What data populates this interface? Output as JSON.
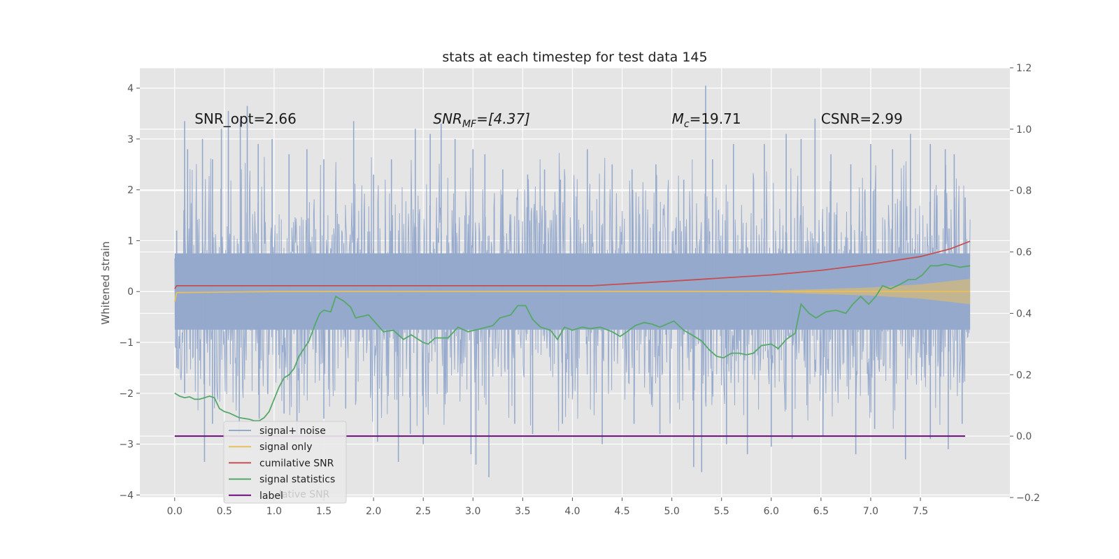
{
  "chart_data": {
    "type": "line",
    "title": "stats at each timestep for test data 145",
    "ylabel": "Whitened strain",
    "xlabel": "",
    "xlim": [
      -0.35,
      8.4
    ],
    "ylim": [
      -4.05,
      4.4
    ],
    "y2lim": [
      -0.2,
      1.2
    ],
    "xticks": [
      0.0,
      0.5,
      1.0,
      1.5,
      2.0,
      2.5,
      3.0,
      3.5,
      4.0,
      4.5,
      5.0,
      5.5,
      6.0,
      6.5,
      7.0,
      7.5
    ],
    "xtick_labels": [
      "0.0",
      "0.5",
      "1.0",
      "1.5",
      "2.0",
      "2.5",
      "3.0",
      "3.5",
      "4.0",
      "4.5",
      "5.0",
      "5.5",
      "6.0",
      "6.5",
      "7.0",
      "7.5"
    ],
    "yticks": [
      4,
      3,
      2,
      1,
      0,
      -1,
      -2,
      -3,
      -4
    ],
    "ytick_labels": [
      "4",
      "3",
      "2",
      "1",
      "0",
      "−1",
      "−2",
      "−3",
      "−4"
    ],
    "y2ticks": [
      1.2,
      1.0,
      0.8,
      0.6,
      0.4,
      0.2,
      0.0,
      -0.2
    ],
    "y2tick_labels": [
      "1.2",
      "1.0",
      "0.8",
      "0.6",
      "0.4",
      "0.2",
      "0.0",
      "−0.2"
    ],
    "grid": true,
    "legend_position": "lower-left",
    "annotations": [
      {
        "text": "SNR_opt=2.66",
        "x": 0.2,
        "y": 3.3
      },
      {
        "text": "SNR_MF=[4.37]",
        "x": 2.6,
        "y": 3.3
      },
      {
        "text": "M_c=19.71",
        "x": 5.0,
        "y": 3.3
      },
      {
        "text": "CSNR=2.99",
        "x": 6.5,
        "y": 3.3
      }
    ],
    "noise": {
      "x_start": 0.0,
      "x_end": 8.0,
      "upper_peak_ticks": [
        [
          0.02,
          1.2
        ],
        [
          0.1,
          3.35
        ],
        [
          0.13,
          2.8
        ],
        [
          0.28,
          3.0
        ],
        [
          0.38,
          2.6
        ],
        [
          0.47,
          3.2
        ],
        [
          0.54,
          3.55
        ],
        [
          0.66,
          3.4
        ],
        [
          0.73,
          3.65
        ],
        [
          0.84,
          2.9
        ],
        [
          0.98,
          3.0
        ],
        [
          1.15,
          2.7
        ],
        [
          1.33,
          2.8
        ],
        [
          1.5,
          2.6
        ],
        [
          1.8,
          3.35
        ],
        [
          2.0,
          2.3
        ],
        [
          2.18,
          2.6
        ],
        [
          2.42,
          3.2
        ],
        [
          2.57,
          3.1
        ],
        [
          2.68,
          3.3
        ],
        [
          2.82,
          3.0
        ],
        [
          3.0,
          2.8
        ],
        [
          3.12,
          2.7
        ],
        [
          3.3,
          2.4
        ],
        [
          3.55,
          2.3
        ],
        [
          3.72,
          2.4
        ],
        [
          3.88,
          2.2
        ],
        [
          4.15,
          2.8
        ],
        [
          4.4,
          2.5
        ],
        [
          4.6,
          2.4
        ],
        [
          4.84,
          2.5
        ],
        [
          5.12,
          2.2
        ],
        [
          5.34,
          4.05
        ],
        [
          5.41,
          2.6
        ],
        [
          5.62,
          2.9
        ],
        [
          5.93,
          2.9
        ],
        [
          6.15,
          3.1
        ],
        [
          6.3,
          3.0
        ],
        [
          6.44,
          3.4
        ],
        [
          6.6,
          2.7
        ],
        [
          6.8,
          2.5
        ],
        [
          7.0,
          2.9
        ],
        [
          7.22,
          2.8
        ],
        [
          7.4,
          3.1
        ],
        [
          7.6,
          2.9
        ],
        [
          7.75,
          2.8
        ],
        [
          7.84,
          2.7
        ],
        [
          7.95,
          1.85
        ]
      ],
      "lower_peak_ticks": [
        [
          0.02,
          -1.5
        ],
        [
          0.1,
          -2.0
        ],
        [
          0.3,
          -3.35
        ],
        [
          0.38,
          -2.6
        ],
        [
          0.65,
          -2.8
        ],
        [
          0.85,
          -2.5
        ],
        [
          1.1,
          -2.4
        ],
        [
          1.23,
          -2.85
        ],
        [
          1.5,
          -2.5
        ],
        [
          1.72,
          -2.3
        ],
        [
          2.04,
          -2.95
        ],
        [
          2.25,
          -3.35
        ],
        [
          2.37,
          -2.8
        ],
        [
          2.5,
          -3.0
        ],
        [
          2.98,
          -3.2
        ],
        [
          3.03,
          -3.4
        ],
        [
          3.16,
          -3.65
        ],
        [
          3.42,
          -2.6
        ],
        [
          3.6,
          -2.8
        ],
        [
          3.9,
          -2.6
        ],
        [
          4.3,
          -3.0
        ],
        [
          4.62,
          -2.6
        ],
        [
          4.88,
          -2.8
        ],
        [
          5.22,
          -3.45
        ],
        [
          5.3,
          -3.55
        ],
        [
          5.55,
          -3.0
        ],
        [
          5.76,
          -3.2
        ],
        [
          6.0,
          -3.05
        ],
        [
          6.21,
          -2.9
        ],
        [
          6.52,
          -2.85
        ],
        [
          6.85,
          -3.2
        ],
        [
          7.04,
          -2.7
        ],
        [
          7.35,
          -3.3
        ],
        [
          7.6,
          -2.9
        ],
        [
          7.78,
          -3.1
        ],
        [
          7.92,
          -2.6
        ]
      ]
    },
    "series": [
      {
        "name": "signal+ noise",
        "axis": "left",
        "color": "#95a9cc"
      },
      {
        "name": "signal only",
        "axis": "left",
        "color": "#e8bf5e",
        "points": [
          [
            0.0,
            -0.2
          ],
          [
            0.02,
            -0.02
          ],
          [
            0.5,
            -0.01
          ],
          [
            1.0,
            0.0
          ],
          [
            4.0,
            0.0
          ],
          [
            5.0,
            0.0
          ],
          [
            6.0,
            0.0
          ],
          [
            7.0,
            0.0
          ],
          [
            8.0,
            0.0
          ]
        ],
        "envelope": [
          [
            6.0,
            0.02
          ],
          [
            6.5,
            0.05
          ],
          [
            7.0,
            0.08
          ],
          [
            7.5,
            0.14
          ],
          [
            8.0,
            0.25
          ]
        ]
      },
      {
        "name": "cumilative SNR",
        "axis": "right",
        "color": "#c44e52",
        "points": [
          [
            0.0,
            0.48
          ],
          [
            0.02,
            0.49
          ],
          [
            0.5,
            0.49
          ],
          [
            1.0,
            0.49
          ],
          [
            2.0,
            0.49
          ],
          [
            3.0,
            0.49
          ],
          [
            4.0,
            0.49
          ],
          [
            4.2,
            0.49
          ],
          [
            5.0,
            0.505
          ],
          [
            5.5,
            0.515
          ],
          [
            6.0,
            0.525
          ],
          [
            6.5,
            0.54
          ],
          [
            7.0,
            0.56
          ],
          [
            7.5,
            0.585
          ],
          [
            7.8,
            0.61
          ],
          [
            8.0,
            0.635
          ]
        ]
      },
      {
        "name": "signal statistics",
        "axis": "right",
        "color": "#55a868",
        "points": [
          [
            0.0,
            0.14
          ],
          [
            0.05,
            0.13
          ],
          [
            0.1,
            0.125
          ],
          [
            0.15,
            0.128
          ],
          [
            0.2,
            0.12
          ],
          [
            0.25,
            0.12
          ],
          [
            0.3,
            0.125
          ],
          [
            0.35,
            0.13
          ],
          [
            0.4,
            0.125
          ],
          [
            0.45,
            0.09
          ],
          [
            0.5,
            0.08
          ],
          [
            0.55,
            0.075
          ],
          [
            0.65,
            0.06
          ],
          [
            0.75,
            0.055
          ],
          [
            0.8,
            0.05
          ],
          [
            0.85,
            0.05
          ],
          [
            0.9,
            0.06
          ],
          [
            0.95,
            0.08
          ],
          [
            1.0,
            0.12
          ],
          [
            1.05,
            0.16
          ],
          [
            1.1,
            0.19
          ],
          [
            1.15,
            0.2
          ],
          [
            1.2,
            0.22
          ],
          [
            1.25,
            0.26
          ],
          [
            1.35,
            0.31
          ],
          [
            1.42,
            0.37
          ],
          [
            1.46,
            0.4
          ],
          [
            1.5,
            0.41
          ],
          [
            1.57,
            0.405
          ],
          [
            1.62,
            0.455
          ],
          [
            1.7,
            0.44
          ],
          [
            1.77,
            0.42
          ],
          [
            1.82,
            0.385
          ],
          [
            1.95,
            0.395
          ],
          [
            2.1,
            0.34
          ],
          [
            2.2,
            0.345
          ],
          [
            2.3,
            0.315
          ],
          [
            2.38,
            0.33
          ],
          [
            2.5,
            0.305
          ],
          [
            2.55,
            0.3
          ],
          [
            2.62,
            0.32
          ],
          [
            2.75,
            0.32
          ],
          [
            2.85,
            0.355
          ],
          [
            2.95,
            0.34
          ],
          [
            3.08,
            0.35
          ],
          [
            3.2,
            0.36
          ],
          [
            3.27,
            0.385
          ],
          [
            3.38,
            0.395
          ],
          [
            3.45,
            0.425
          ],
          [
            3.53,
            0.425
          ],
          [
            3.6,
            0.38
          ],
          [
            3.68,
            0.355
          ],
          [
            3.78,
            0.345
          ],
          [
            3.85,
            0.315
          ],
          [
            3.92,
            0.355
          ],
          [
            4.0,
            0.345
          ],
          [
            4.1,
            0.355
          ],
          [
            4.18,
            0.35
          ],
          [
            4.28,
            0.355
          ],
          [
            4.4,
            0.34
          ],
          [
            4.48,
            0.325
          ],
          [
            4.55,
            0.34
          ],
          [
            4.63,
            0.36
          ],
          [
            4.72,
            0.37
          ],
          [
            4.8,
            0.365
          ],
          [
            4.88,
            0.355
          ],
          [
            4.95,
            0.365
          ],
          [
            5.02,
            0.375
          ],
          [
            5.12,
            0.345
          ],
          [
            5.2,
            0.33
          ],
          [
            5.3,
            0.31
          ],
          [
            5.38,
            0.28
          ],
          [
            5.45,
            0.26
          ],
          [
            5.52,
            0.255
          ],
          [
            5.6,
            0.27
          ],
          [
            5.68,
            0.27
          ],
          [
            5.75,
            0.265
          ],
          [
            5.82,
            0.27
          ],
          [
            5.9,
            0.295
          ],
          [
            6.0,
            0.3
          ],
          [
            6.07,
            0.285
          ],
          [
            6.15,
            0.315
          ],
          [
            6.24,
            0.335
          ],
          [
            6.3,
            0.43
          ],
          [
            6.38,
            0.4
          ],
          [
            6.45,
            0.385
          ],
          [
            6.55,
            0.405
          ],
          [
            6.65,
            0.41
          ],
          [
            6.75,
            0.4
          ],
          [
            6.82,
            0.43
          ],
          [
            6.9,
            0.455
          ],
          [
            6.98,
            0.43
          ],
          [
            7.05,
            0.455
          ],
          [
            7.12,
            0.49
          ],
          [
            7.2,
            0.48
          ],
          [
            7.3,
            0.495
          ],
          [
            7.38,
            0.51
          ],
          [
            7.45,
            0.51
          ],
          [
            7.52,
            0.525
          ],
          [
            7.6,
            0.555
          ],
          [
            7.68,
            0.555
          ],
          [
            7.75,
            0.56
          ],
          [
            7.83,
            0.555
          ],
          [
            7.9,
            0.55
          ],
          [
            8.0,
            0.555
          ]
        ]
      },
      {
        "name": "label",
        "axis": "right",
        "color": "#6a0f7a",
        "points": [
          [
            0.0,
            0.0
          ],
          [
            7.95,
            0.0
          ]
        ]
      }
    ],
    "legend_entries": [
      "signal+ noise",
      "signal only",
      "cumilative SNR",
      "signal statistics",
      "label"
    ],
    "legend_ghost_text": "lative SNR"
  }
}
